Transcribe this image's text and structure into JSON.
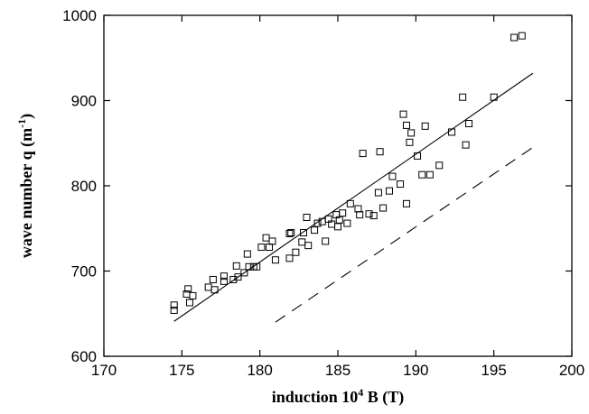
{
  "chart_data": {
    "type": "scatter",
    "xlabel": {
      "prefix": "induction 10",
      "sup": "4",
      "suffix": " B (T)"
    },
    "ylabel": {
      "prefix": "wave number q (m",
      "sup": "-1",
      "suffix": ")"
    },
    "xlim": [
      170,
      200
    ],
    "ylim": [
      600,
      1000
    ],
    "xticks": [
      170,
      175,
      180,
      185,
      190,
      195,
      200
    ],
    "yticks": [
      600,
      700,
      800,
      900,
      1000
    ],
    "grid": false,
    "legend": "none",
    "marker": "open-square",
    "series": [
      {
        "values": [
          [
            174.5,
            660
          ],
          [
            174.5,
            654
          ],
          [
            175.3,
            673
          ],
          [
            175.4,
            679
          ],
          [
            175.5,
            663
          ],
          [
            175.7,
            671
          ],
          [
            176.7,
            681
          ],
          [
            177.0,
            690
          ],
          [
            177.1,
            678
          ],
          [
            177.7,
            688
          ],
          [
            177.7,
            694
          ],
          [
            178.3,
            690
          ],
          [
            178.5,
            706
          ],
          [
            178.6,
            693
          ],
          [
            179.0,
            698
          ],
          [
            179.2,
            720
          ],
          [
            179.3,
            705
          ],
          [
            179.6,
            705
          ],
          [
            179.8,
            705
          ],
          [
            180.1,
            728
          ],
          [
            180.4,
            739
          ],
          [
            180.6,
            728
          ],
          [
            180.8,
            735
          ],
          [
            181.0,
            713
          ],
          [
            181.9,
            744
          ],
          [
            182.0,
            745
          ],
          [
            181.9,
            715
          ],
          [
            182.3,
            722
          ],
          [
            182.7,
            734
          ],
          [
            182.8,
            745
          ],
          [
            183.0,
            763
          ],
          [
            183.1,
            730
          ],
          [
            183.5,
            748
          ],
          [
            183.7,
            756
          ],
          [
            184.0,
            758
          ],
          [
            184.2,
            735
          ],
          [
            184.4,
            761
          ],
          [
            184.6,
            755
          ],
          [
            184.9,
            766
          ],
          [
            185.0,
            752
          ],
          [
            185.1,
            760
          ],
          [
            185.3,
            768
          ],
          [
            185.6,
            756
          ],
          [
            185.8,
            779
          ],
          [
            186.3,
            773
          ],
          [
            186.4,
            766
          ],
          [
            186.6,
            838
          ],
          [
            187.0,
            767
          ],
          [
            187.3,
            765
          ],
          [
            187.6,
            792
          ],
          [
            187.7,
            840
          ],
          [
            187.9,
            774
          ],
          [
            188.3,
            794
          ],
          [
            188.5,
            811
          ],
          [
            189.0,
            802
          ],
          [
            189.2,
            884
          ],
          [
            189.4,
            871
          ],
          [
            189.4,
            779
          ],
          [
            189.6,
            851
          ],
          [
            189.7,
            862
          ],
          [
            190.1,
            835
          ],
          [
            190.4,
            813
          ],
          [
            190.6,
            870
          ],
          [
            190.9,
            813
          ],
          [
            191.5,
            824
          ],
          [
            192.3,
            863
          ],
          [
            193.0,
            904
          ],
          [
            193.2,
            848
          ],
          [
            193.4,
            873
          ],
          [
            195.0,
            904
          ],
          [
            196.3,
            974
          ],
          [
            196.8,
            976
          ]
        ]
      }
    ],
    "lines": [
      {
        "style": "solid",
        "x": [
          174.5,
          197.5
        ],
        "y": [
          641,
          932
        ]
      },
      {
        "style": "dashed",
        "x": [
          181.0,
          197.5
        ],
        "y": [
          640,
          845
        ]
      }
    ]
  }
}
